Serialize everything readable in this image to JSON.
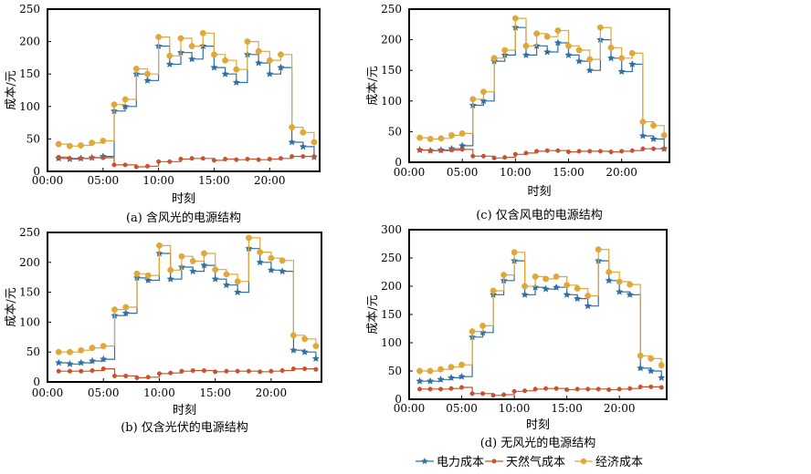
{
  "colors": {
    "electricity": "#2f6fa3",
    "gas": "#c8532c",
    "economic": "#e0a83a"
  },
  "legend": {
    "items": [
      {
        "label": "电力成本",
        "color": "#2f6fa3",
        "marker": "star"
      },
      {
        "label": "天然气成本",
        "color": "#c8532c",
        "marker": "circle"
      },
      {
        "label": "经济成本",
        "color": "#e0a83a",
        "marker": "circle"
      }
    ]
  },
  "chart_data": [
    {
      "type": "line",
      "caption": "(a) 含风光的电源结构",
      "xlabel": "时刻",
      "ylabel": "成本/元",
      "ylim": [
        0,
        250
      ],
      "yticks": [
        0,
        50,
        100,
        150,
        200,
        250
      ],
      "xlim": [
        0,
        24.5
      ],
      "xticks": [
        "00:00",
        "05:00",
        "10:00",
        "15:00",
        "20:00"
      ],
      "step": true,
      "x": [
        1,
        2,
        3,
        4,
        5,
        6,
        7,
        8,
        9,
        10,
        11,
        12,
        13,
        14,
        15,
        16,
        17,
        18,
        19,
        20,
        21,
        22,
        23,
        24
      ],
      "series": [
        {
          "name": "电力成本",
          "values": [
            20,
            19,
            20,
            21,
            23,
            93,
            100,
            150,
            140,
            193,
            165,
            183,
            173,
            193,
            160,
            150,
            137,
            180,
            167,
            150,
            160,
            45,
            38,
            22
          ]
        },
        {
          "name": "天然气成本",
          "values": [
            22,
            20,
            20,
            21,
            21,
            10,
            10,
            7,
            8,
            15,
            15,
            19,
            20,
            20,
            17,
            19,
            18,
            19,
            18,
            19,
            20,
            23,
            23,
            23
          ]
        },
        {
          "name": "经济成本",
          "values": [
            42,
            39,
            40,
            44,
            47,
            103,
            111,
            158,
            150,
            207,
            178,
            205,
            193,
            213,
            180,
            171,
            157,
            200,
            185,
            171,
            180,
            68,
            60,
            45
          ]
        }
      ]
    },
    {
      "type": "line",
      "caption": "(c) 仅含风电的电源结构",
      "xlabel": "时刻",
      "ylabel": "成本/元",
      "ylim": [
        0,
        250
      ],
      "yticks": [
        0,
        50,
        100,
        150,
        200,
        250
      ],
      "xlim": [
        0,
        24.5
      ],
      "xticks": [
        "00:00",
        "05:00",
        "10:00",
        "15:00",
        "20:00"
      ],
      "step": true,
      "x": [
        1,
        2,
        3,
        4,
        5,
        6,
        7,
        8,
        9,
        10,
        11,
        12,
        13,
        14,
        15,
        16,
        17,
        18,
        19,
        20,
        21,
        22,
        23,
        24
      ],
      "series": [
        {
          "name": "电力成本",
          "values": [
            20,
            19,
            20,
            22,
            27,
            93,
            100,
            165,
            175,
            220,
            175,
            190,
            180,
            195,
            175,
            165,
            150,
            200,
            170,
            148,
            160,
            43,
            38,
            22
          ]
        },
        {
          "name": "天然气成本",
          "values": [
            20,
            19,
            19,
            20,
            21,
            10,
            10,
            7,
            8,
            13,
            15,
            18,
            19,
            19,
            17,
            18,
            18,
            18,
            17,
            18,
            19,
            22,
            22,
            22
          ]
        },
        {
          "name": "经济成本",
          "values": [
            40,
            38,
            39,
            44,
            47,
            103,
            115,
            170,
            183,
            235,
            190,
            210,
            205,
            215,
            190,
            183,
            168,
            220,
            187,
            170,
            178,
            66,
            60,
            44
          ]
        }
      ]
    },
    {
      "type": "line",
      "caption": "(b) 仅含光伏的电源结构",
      "xlabel": "时刻",
      "ylabel": "成本/元",
      "ylim": [
        0,
        250
      ],
      "yticks": [
        0,
        50,
        100,
        150,
        200,
        250
      ],
      "xlim": [
        0,
        24.5
      ],
      "xticks": [
        "00:00",
        "05:00",
        "10:00",
        "15:00",
        "20:00"
      ],
      "step": true,
      "x": [
        1,
        2,
        3,
        4,
        5,
        6,
        7,
        8,
        9,
        10,
        11,
        12,
        13,
        14,
        15,
        16,
        17,
        18,
        19,
        20,
        21,
        22,
        23,
        24
      ],
      "series": [
        {
          "name": "电力成本",
          "values": [
            32,
            30,
            32,
            35,
            38,
            111,
            115,
            174,
            170,
            215,
            172,
            192,
            185,
            195,
            172,
            162,
            150,
            223,
            200,
            187,
            185,
            53,
            50,
            39
          ]
        },
        {
          "name": "天然气成本",
          "values": [
            18,
            18,
            18,
            19,
            22,
            10,
            10,
            7,
            8,
            14,
            15,
            18,
            19,
            19,
            17,
            18,
            18,
            18,
            17,
            18,
            19,
            22,
            22,
            21
          ]
        },
        {
          "name": "经济成本",
          "values": [
            50,
            50,
            53,
            57,
            60,
            121,
            125,
            181,
            178,
            228,
            187,
            210,
            202,
            215,
            188,
            180,
            168,
            241,
            217,
            207,
            203,
            78,
            72,
            60
          ]
        }
      ]
    },
    {
      "type": "line",
      "caption": "(d) 无风光的电源结构",
      "xlabel": "时刻",
      "ylabel": "成本/元",
      "ylim": [
        0,
        300
      ],
      "yticks": [
        0,
        50,
        100,
        150,
        200,
        250,
        300
      ],
      "xlim": [
        0,
        24.5
      ],
      "xticks": [
        "00:00",
        "05:00",
        "10:00",
        "15:00",
        "20:00"
      ],
      "step": true,
      "x": [
        1,
        2,
        3,
        4,
        5,
        6,
        7,
        8,
        9,
        10,
        11,
        12,
        13,
        14,
        15,
        16,
        17,
        18,
        19,
        20,
        21,
        22,
        23,
        24
      ],
      "series": [
        {
          "name": "电力成本",
          "values": [
            32,
            32,
            35,
            38,
            40,
            110,
            118,
            185,
            210,
            245,
            185,
            198,
            195,
            198,
            185,
            178,
            165,
            245,
            210,
            190,
            185,
            55,
            50,
            38
          ]
        },
        {
          "name": "天然气成本",
          "values": [
            18,
            18,
            18,
            19,
            21,
            10,
            10,
            7,
            8,
            14,
            15,
            18,
            19,
            19,
            17,
            18,
            18,
            18,
            17,
            18,
            19,
            22,
            22,
            21
          ]
        },
        {
          "name": "经济成本",
          "values": [
            50,
            50,
            53,
            57,
            61,
            120,
            130,
            192,
            220,
            260,
            200,
            217,
            213,
            217,
            202,
            196,
            183,
            265,
            225,
            208,
            203,
            77,
            72,
            60
          ]
        }
      ]
    }
  ]
}
